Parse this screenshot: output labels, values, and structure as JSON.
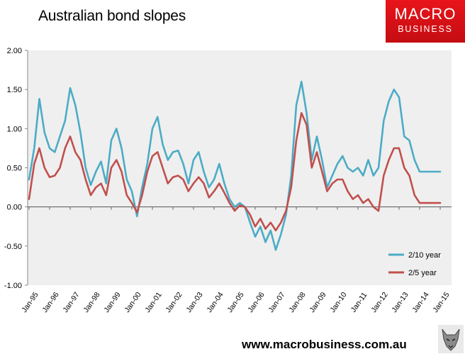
{
  "chart_data": {
    "type": "line",
    "title": "Australian bond slopes",
    "xlabel": "",
    "ylabel": "",
    "ylim": [
      -1.0,
      2.0
    ],
    "y_ticks": [
      "2.00",
      "1.50",
      "1.00",
      "0.50",
      "0.00",
      "-0.50",
      "-1.00"
    ],
    "x_tick_labels": [
      "Jan-95",
      "Jan-96",
      "Jan-97",
      "Jan-98",
      "Jan-99",
      "Jan-00",
      "Jan-01",
      "Jan-02",
      "Jan-03",
      "Jan-04",
      "Jan-05",
      "Jan-06",
      "Jan-07",
      "Jan-08",
      "Jan-09",
      "Jan-10",
      "Jan-11",
      "Jan-12",
      "Jan-13",
      "Jan-14",
      "Jan-15"
    ],
    "grid": false,
    "legend_position": "bottom-right",
    "colors": {
      "2/10 year": "#4bacc6",
      "2/5 year": "#c0504d",
      "plot_bg": "#efefef"
    },
    "x_unit": "years since Jan-95",
    "series": [
      {
        "name": "2/10 year",
        "x": [
          0,
          0.25,
          0.5,
          0.75,
          1.0,
          1.25,
          1.5,
          1.75,
          2.0,
          2.25,
          2.5,
          2.75,
          3.0,
          3.25,
          3.5,
          3.75,
          4.0,
          4.25,
          4.5,
          4.75,
          5.0,
          5.25,
          5.5,
          5.75,
          6.0,
          6.25,
          6.5,
          6.75,
          7.0,
          7.25,
          7.5,
          7.75,
          8.0,
          8.25,
          8.5,
          8.75,
          9.0,
          9.25,
          9.5,
          9.75,
          10.0,
          10.25,
          10.5,
          10.75,
          11.0,
          11.25,
          11.5,
          11.75,
          12.0,
          12.25,
          12.5,
          12.75,
          13.0,
          13.25,
          13.5,
          13.75,
          14.0,
          14.25,
          14.5,
          14.75,
          15.0,
          15.25,
          15.5,
          15.75,
          16.0,
          16.25,
          16.5,
          16.75,
          17.0,
          17.25,
          17.5,
          17.75,
          18.0,
          18.25,
          18.5,
          18.75,
          19.0,
          19.25,
          19.5,
          19.75,
          20.0
        ],
        "values": [
          0.35,
          0.75,
          1.38,
          0.95,
          0.75,
          0.7,
          0.9,
          1.1,
          1.52,
          1.3,
          0.95,
          0.5,
          0.28,
          0.45,
          0.58,
          0.3,
          0.85,
          1.0,
          0.75,
          0.35,
          0.2,
          -0.12,
          0.25,
          0.55,
          1.0,
          1.15,
          0.8,
          0.6,
          0.7,
          0.72,
          0.55,
          0.3,
          0.6,
          0.7,
          0.45,
          0.25,
          0.35,
          0.55,
          0.3,
          0.1,
          0.0,
          0.05,
          0.0,
          -0.2,
          -0.38,
          -0.25,
          -0.45,
          -0.3,
          -0.55,
          -0.35,
          -0.1,
          0.4,
          1.3,
          1.6,
          1.2,
          0.6,
          0.9,
          0.6,
          0.25,
          0.4,
          0.55,
          0.65,
          0.5,
          0.45,
          0.5,
          0.4,
          0.6,
          0.4,
          0.5,
          1.1,
          1.35,
          1.5,
          1.4,
          0.9,
          0.85,
          0.6,
          0.45,
          0.45,
          0.45,
          0.45,
          0.45
        ]
      },
      {
        "name": "2/5 year",
        "x": [
          0,
          0.25,
          0.5,
          0.75,
          1.0,
          1.25,
          1.5,
          1.75,
          2.0,
          2.25,
          2.5,
          2.75,
          3.0,
          3.25,
          3.5,
          3.75,
          4.0,
          4.25,
          4.5,
          4.75,
          5.0,
          5.25,
          5.5,
          5.75,
          6.0,
          6.25,
          6.5,
          6.75,
          7.0,
          7.25,
          7.5,
          7.75,
          8.0,
          8.25,
          8.5,
          8.75,
          9.0,
          9.25,
          9.5,
          9.75,
          10.0,
          10.25,
          10.5,
          10.75,
          11.0,
          11.25,
          11.5,
          11.75,
          12.0,
          12.25,
          12.5,
          12.75,
          13.0,
          13.25,
          13.5,
          13.75,
          14.0,
          14.25,
          14.5,
          14.75,
          15.0,
          15.25,
          15.5,
          15.75,
          16.0,
          16.25,
          16.5,
          16.75,
          17.0,
          17.25,
          17.5,
          17.75,
          18.0,
          18.25,
          18.5,
          18.75,
          19.0,
          19.25,
          19.5,
          19.75,
          20.0
        ],
        "values": [
          0.1,
          0.55,
          0.75,
          0.5,
          0.38,
          0.4,
          0.5,
          0.75,
          0.9,
          0.7,
          0.6,
          0.35,
          0.15,
          0.25,
          0.3,
          0.15,
          0.5,
          0.6,
          0.45,
          0.15,
          0.05,
          -0.07,
          0.15,
          0.45,
          0.65,
          0.7,
          0.5,
          0.3,
          0.38,
          0.4,
          0.35,
          0.2,
          0.3,
          0.38,
          0.3,
          0.12,
          0.2,
          0.3,
          0.18,
          0.05,
          -0.05,
          0.02,
          0.0,
          -0.1,
          -0.25,
          -0.15,
          -0.28,
          -0.2,
          -0.3,
          -0.2,
          -0.05,
          0.25,
          0.85,
          1.2,
          1.05,
          0.5,
          0.7,
          0.45,
          0.2,
          0.3,
          0.35,
          0.35,
          0.2,
          0.1,
          0.15,
          0.05,
          0.1,
          0.0,
          -0.05,
          0.4,
          0.6,
          0.75,
          0.75,
          0.5,
          0.4,
          0.15,
          0.05,
          0.05,
          0.05,
          0.05,
          0.05
        ]
      }
    ]
  },
  "branding": {
    "logo_line1": "MACRO",
    "logo_line2": "BUSINESS",
    "url": "www.macrobusiness.com.au",
    "mascot_icon": "wolf-icon"
  }
}
